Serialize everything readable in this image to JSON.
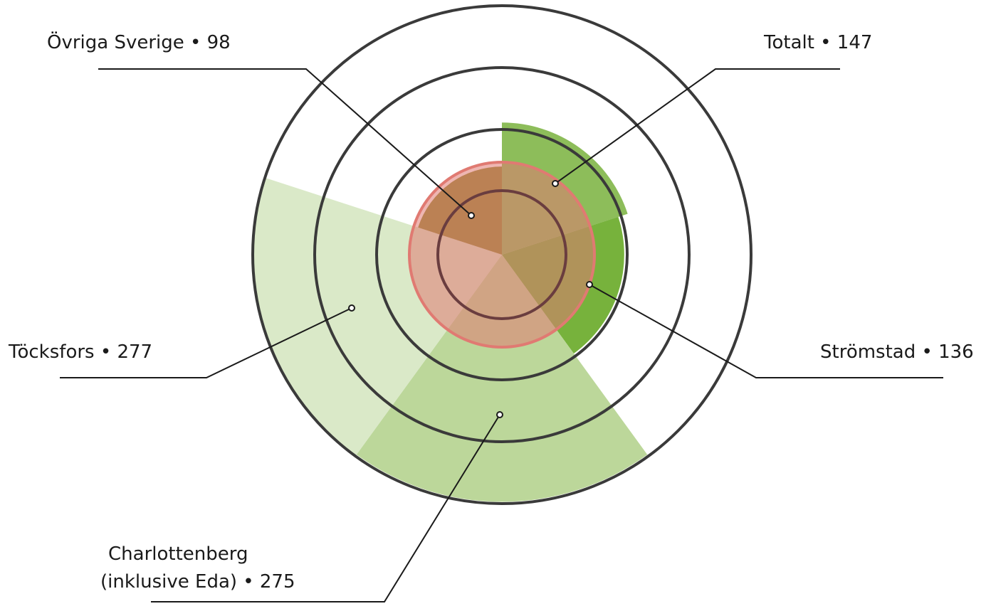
{
  "chart_data": {
    "type": "polar-area",
    "unit_note": "",
    "title": "",
    "segments": [
      {
        "name": "Totalt",
        "value": 147,
        "color": "#8dbd5a"
      },
      {
        "name": "Strömstad",
        "value": 136,
        "color": "#77b23c"
      },
      {
        "name": "Charlottenberg (inklusive Eda)",
        "value": 275,
        "color": "#bcd79a"
      },
      {
        "name": "Töcksfors",
        "value": 277,
        "color": "#dae9c8"
      },
      {
        "name": "Övriga Sverige",
        "value": 98,
        "color": "#8e8a2f"
      }
    ],
    "reference_circle_color": "#e07a72",
    "ring_color": "#3a3a3a",
    "rings": 4
  },
  "labels": {
    "ovriga": {
      "text": "Övriga Sverige • 98"
    },
    "totalt": {
      "text": "Totalt • 147"
    },
    "tocksfors": {
      "text": "Töcksfors • 277"
    },
    "stromstad": {
      "text": "Strömstad • 136"
    },
    "charlottenberg_line1": {
      "text": "Charlottenberg"
    },
    "charlottenberg_line2": {
      "text": "(inklusive Eda) • 275"
    }
  }
}
